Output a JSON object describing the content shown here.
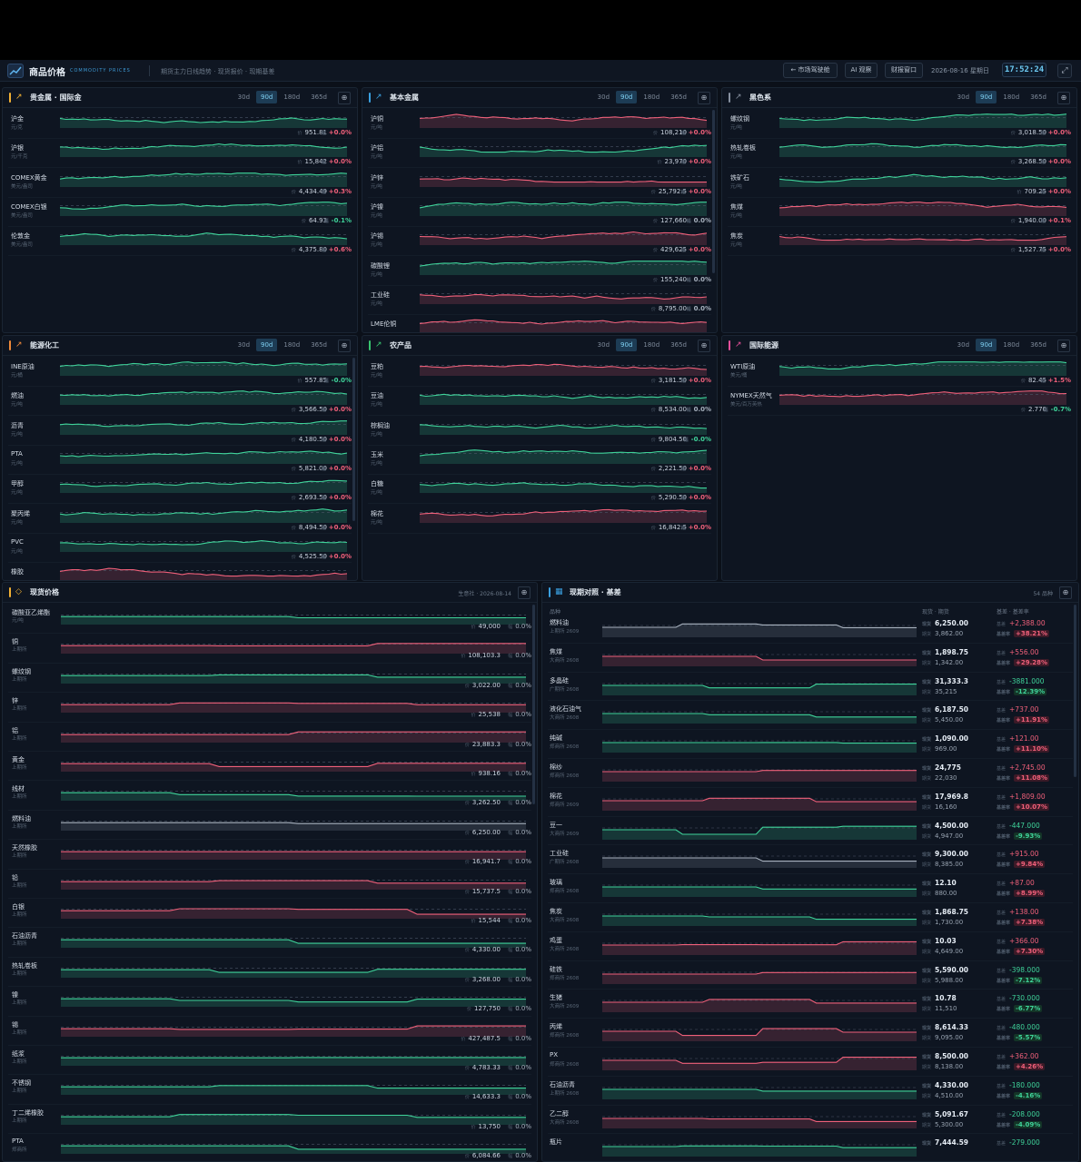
{
  "topbar": {
    "title": "商品价格",
    "subtitle": "COMMODITY PRICES",
    "description": "期货主力日线趋势 · 现货报价 · 现期基差",
    "btn_market": "← 市场驾驶舱",
    "btn_ai": "AI 观察",
    "btn_news": "财报窗口",
    "date": "2026-08-16 星期日",
    "clock": "17:52:24"
  },
  "labels": {
    "price": "价",
    "chg": "幅",
    "spot": "现货",
    "futures": "期货",
    "basis": "基差",
    "basis_rate": "基差率"
  },
  "ranges": [
    "30d",
    "90d",
    "180d",
    "365d"
  ],
  "active_range": "90d",
  "colors": {
    "up": "#f0607a",
    "down": "#3fd39a",
    "gold": "#f2b134",
    "blue": "#3aa0e0",
    "gray": "#8791a0",
    "orange": "#f08a3a",
    "green": "#38c46f",
    "pink": "#e94f9b"
  },
  "panels": [
    {
      "title": "贵金属 · 国际金",
      "accent": "gold",
      "rows": [
        {
          "name": "沪金",
          "unit": "元/克",
          "price": "951.81",
          "change": "+0.0%",
          "dir": "up",
          "trend": "up"
        },
        {
          "name": "沪银",
          "unit": "元/千克",
          "price": "15,842",
          "change": "+0.0%",
          "dir": "up",
          "trend": "up"
        },
        {
          "name": "COMEX黄金",
          "unit": "美元/盎司",
          "price": "4,434.49",
          "change": "+0.3%",
          "dir": "up",
          "trend": "up"
        },
        {
          "name": "COMEX白银",
          "unit": "美元/盎司",
          "price": "64.93",
          "change": "-0.1%",
          "dir": "down",
          "trend": "up"
        },
        {
          "name": "伦敦金",
          "unit": "美元/盎司",
          "price": "4,375.80",
          "change": "+0.6%",
          "dir": "up",
          "trend": "up"
        }
      ]
    },
    {
      "title": "基本金属",
      "accent": "blue",
      "rows": [
        {
          "name": "沪铜",
          "unit": "元/吨",
          "price": "108,210",
          "change": "+0.0%",
          "dir": "up",
          "trend": "down"
        },
        {
          "name": "沪铝",
          "unit": "元/吨",
          "price": "23,970",
          "change": "+0.0%",
          "dir": "up",
          "trend": "up"
        },
        {
          "name": "沪锌",
          "unit": "元/吨",
          "price": "25,792.5",
          "change": "+0.0%",
          "dir": "up",
          "trend": "down"
        },
        {
          "name": "沪镍",
          "unit": "元/吨",
          "price": "127,660",
          "change": "0.0%",
          "dir": "flat",
          "trend": "up"
        },
        {
          "name": "沪锡",
          "unit": "元/吨",
          "price": "429,625",
          "change": "+0.0%",
          "dir": "up",
          "trend": "down"
        },
        {
          "name": "碳酸锂",
          "unit": "元/吨",
          "price": "155,240",
          "change": "0.0%",
          "dir": "flat",
          "trend": "up"
        },
        {
          "name": "工业硅",
          "unit": "元/吨",
          "price": "8,795.00",
          "change": "0.0%",
          "dir": "flat",
          "trend": "down"
        },
        {
          "name": "LME伦铜",
          "unit": "",
          "price": "",
          "change": "",
          "dir": "flat",
          "trend": "down"
        }
      ]
    },
    {
      "title": "黑色系",
      "accent": "gray",
      "rows": [
        {
          "name": "螺纹钢",
          "unit": "元/吨",
          "price": "3,018.50",
          "change": "+0.0%",
          "dir": "up",
          "trend": "up"
        },
        {
          "name": "热轧卷板",
          "unit": "元/吨",
          "price": "3,268.50",
          "change": "+0.0%",
          "dir": "up",
          "trend": "up"
        },
        {
          "name": "铁矿石",
          "unit": "元/吨",
          "price": "709.25",
          "change": "+0.0%",
          "dir": "up",
          "trend": "up"
        },
        {
          "name": "焦煤",
          "unit": "元/吨",
          "price": "1,940.00",
          "change": "+0.1%",
          "dir": "up",
          "trend": "down"
        },
        {
          "name": "焦炭",
          "unit": "元/吨",
          "price": "1,527.75",
          "change": "+0.0%",
          "dir": "up",
          "trend": "down"
        }
      ]
    },
    {
      "title": "能源化工",
      "accent": "orange",
      "rows": [
        {
          "name": "INE原油",
          "unit": "元/桶",
          "price": "557.85",
          "change": "-0.0%",
          "dir": "down",
          "trend": "up"
        },
        {
          "name": "燃油",
          "unit": "元/吨",
          "price": "3,566.50",
          "change": "+0.0%",
          "dir": "up",
          "trend": "up"
        },
        {
          "name": "沥青",
          "unit": "元/吨",
          "price": "4,180.50",
          "change": "+0.0%",
          "dir": "up",
          "trend": "up"
        },
        {
          "name": "PTA",
          "unit": "元/吨",
          "price": "5,821.00",
          "change": "+0.0%",
          "dir": "up",
          "trend": "up"
        },
        {
          "name": "甲醇",
          "unit": "元/吨",
          "price": "2,693.50",
          "change": "+0.0%",
          "dir": "up",
          "trend": "up"
        },
        {
          "name": "聚丙烯",
          "unit": "元/吨",
          "price": "8,494.50",
          "change": "+0.0%",
          "dir": "up",
          "trend": "up"
        },
        {
          "name": "PVC",
          "unit": "元/吨",
          "price": "4,525.50",
          "change": "+0.0%",
          "dir": "up",
          "trend": "up"
        },
        {
          "name": "橡胶",
          "unit": "",
          "price": "",
          "change": "",
          "dir": "flat",
          "trend": "down"
        }
      ]
    },
    {
      "title": "农产品",
      "accent": "green",
      "rows": [
        {
          "name": "豆粕",
          "unit": "元/吨",
          "price": "3,181.50",
          "change": "+0.0%",
          "dir": "up",
          "trend": "down"
        },
        {
          "name": "豆油",
          "unit": "元/吨",
          "price": "8,534.00",
          "change": "0.0%",
          "dir": "flat",
          "trend": "up"
        },
        {
          "name": "棕榈油",
          "unit": "元/吨",
          "price": "9,804.50",
          "change": "-0.0%",
          "dir": "down",
          "trend": "up"
        },
        {
          "name": "玉米",
          "unit": "元/吨",
          "price": "2,221.50",
          "change": "+0.0%",
          "dir": "up",
          "trend": "up"
        },
        {
          "name": "白糖",
          "unit": "元/吨",
          "price": "5,290.50",
          "change": "+0.0%",
          "dir": "up",
          "trend": "up"
        },
        {
          "name": "棉花",
          "unit": "元/吨",
          "price": "16,842.5",
          "change": "+0.0%",
          "dir": "up",
          "trend": "down"
        }
      ]
    },
    {
      "title": "国际能源",
      "accent": "pink",
      "rows": [
        {
          "name": "WTI原油",
          "unit": "美元/桶",
          "price": "82.45",
          "change": "+1.5%",
          "dir": "up",
          "trend": "up"
        },
        {
          "name": "NYMEX天然气",
          "unit": "美元/百万英热",
          "price": "2.770",
          "change": "-0.7%",
          "dir": "down",
          "trend": "down"
        }
      ]
    }
  ],
  "spot": {
    "title": "现货价格",
    "source": "生意社 · 2026-08-14",
    "rows": [
      {
        "name": "碳酸亚乙烯酯",
        "ex": "元/吨",
        "price": "49,000",
        "change": "0.0%",
        "trend": "up"
      },
      {
        "name": "铜",
        "ex": "上期所",
        "price": "108,103.3",
        "change": "0.0%",
        "trend": "down"
      },
      {
        "name": "螺纹钢",
        "ex": "上期所",
        "price": "3,022.00",
        "change": "0.0%",
        "trend": "up"
      },
      {
        "name": "锌",
        "ex": "上期所",
        "price": "25,538",
        "change": "0.0%",
        "trend": "down"
      },
      {
        "name": "铝",
        "ex": "上期所",
        "price": "23,883.3",
        "change": "0.0%",
        "trend": "down"
      },
      {
        "name": "黄金",
        "ex": "上期所",
        "price": "938.16",
        "change": "0.0%",
        "trend": "down"
      },
      {
        "name": "线材",
        "ex": "上期所",
        "price": "3,262.50",
        "change": "0.0%",
        "trend": "up"
      },
      {
        "name": "燃料油",
        "ex": "上期所",
        "price": "6,250.00",
        "change": "0.0%",
        "trend": "flat"
      },
      {
        "name": "天然橡胶",
        "ex": "上期所",
        "price": "16,941.7",
        "change": "0.0%",
        "trend": "down"
      },
      {
        "name": "铅",
        "ex": "上期所",
        "price": "15,737.5",
        "change": "0.0%",
        "trend": "down"
      },
      {
        "name": "白银",
        "ex": "上期所",
        "price": "15,544",
        "change": "0.0%",
        "trend": "down"
      },
      {
        "name": "石油沥青",
        "ex": "上期所",
        "price": "4,330.00",
        "change": "0.0%",
        "trend": "up"
      },
      {
        "name": "热轧卷板",
        "ex": "上期所",
        "price": "3,268.00",
        "change": "0.0%",
        "trend": "up"
      },
      {
        "name": "镍",
        "ex": "上期所",
        "price": "127,750",
        "change": "0.0%",
        "trend": "up"
      },
      {
        "name": "锡",
        "ex": "上期所",
        "price": "427,487.5",
        "change": "0.0%",
        "trend": "down"
      },
      {
        "name": "纸浆",
        "ex": "上期所",
        "price": "4,783.33",
        "change": "0.0%",
        "trend": "up"
      },
      {
        "name": "不锈钢",
        "ex": "上期所",
        "price": "14,633.3",
        "change": "0.0%",
        "trend": "up"
      },
      {
        "name": "丁二烯橡胶",
        "ex": "上期所",
        "price": "13,750",
        "change": "0.0%",
        "trend": "up"
      },
      {
        "name": "PTA",
        "ex": "郑商所",
        "price": "6,084.66",
        "change": "0.0%",
        "trend": "up"
      }
    ]
  },
  "basis": {
    "title": "现期对照 · 基差",
    "count": "54 品种",
    "headers": {
      "name": "品种",
      "prices": "现货 · 期货",
      "basis": "基差 · 基差率"
    },
    "rows": [
      {
        "name": "燃料油",
        "ex": "上期所 2609",
        "spot": "6,250.00",
        "fut": "3,862.00",
        "basis": "+2,388.00",
        "rate": "+38.21%",
        "dir": "up",
        "trend": "flat"
      },
      {
        "name": "焦煤",
        "ex": "大商所 2608",
        "spot": "1,898.75",
        "fut": "1,342.00",
        "basis": "+556.00",
        "rate": "+29.28%",
        "dir": "up",
        "trend": "down"
      },
      {
        "name": "多晶硅",
        "ex": "广期所 2608",
        "spot": "31,333.3",
        "fut": "35,215",
        "basis": "-3881.000",
        "rate": "-12.39%",
        "dir": "down",
        "trend": "up"
      },
      {
        "name": "液化石油气",
        "ex": "大商所 2608",
        "spot": "6,187.50",
        "fut": "5,450.00",
        "basis": "+737.00",
        "rate": "+11.91%",
        "dir": "up",
        "trend": "up"
      },
      {
        "name": "纯碱",
        "ex": "郑商所 2608",
        "spot": "1,090.00",
        "fut": "969.00",
        "basis": "+121.00",
        "rate": "+11.10%",
        "dir": "up",
        "trend": "up"
      },
      {
        "name": "棉纱",
        "ex": "郑商所 2608",
        "spot": "24,775",
        "fut": "22,030",
        "basis": "+2,745.00",
        "rate": "+11.08%",
        "dir": "up",
        "trend": "down"
      },
      {
        "name": "棉花",
        "ex": "郑商所 2609",
        "spot": "17,969.8",
        "fut": "16,160",
        "basis": "+1,809.00",
        "rate": "+10.07%",
        "dir": "up",
        "trend": "down"
      },
      {
        "name": "豆一",
        "ex": "大商所 2609",
        "spot": "4,500.00",
        "fut": "4,947.00",
        "basis": "-447.000",
        "rate": "-9.93%",
        "dir": "down",
        "trend": "up"
      },
      {
        "name": "工业硅",
        "ex": "广期所 2608",
        "spot": "9,300.00",
        "fut": "8,385.00",
        "basis": "+915.00",
        "rate": "+9.84%",
        "dir": "up",
        "trend": "flat"
      },
      {
        "name": "玻璃",
        "ex": "郑商所 2608",
        "spot": "12.10",
        "fut": "880.00",
        "basis": "+87.00",
        "rate": "+8.99%",
        "dir": "up",
        "trend": "up"
      },
      {
        "name": "焦炭",
        "ex": "大商所 2608",
        "spot": "1,868.75",
        "fut": "1,730.00",
        "basis": "+138.00",
        "rate": "+7.38%",
        "dir": "up",
        "trend": "up"
      },
      {
        "name": "鸡蛋",
        "ex": "大商所 2608",
        "spot": "10.03",
        "fut": "4,649.00",
        "basis": "+366.00",
        "rate": "+7.30%",
        "dir": "up",
        "trend": "down"
      },
      {
        "name": "硅铁",
        "ex": "郑商所 2608",
        "spot": "5,590.00",
        "fut": "5,988.00",
        "basis": "-398.000",
        "rate": "-7.12%",
        "dir": "down",
        "trend": "down"
      },
      {
        "name": "生猪",
        "ex": "大商所 2609",
        "spot": "10.78",
        "fut": "11,510",
        "basis": "-730.000",
        "rate": "-6.77%",
        "dir": "down",
        "trend": "down"
      },
      {
        "name": "丙烯",
        "ex": "郑商所 2608",
        "spot": "8,614.33",
        "fut": "9,095.00",
        "basis": "-480.000",
        "rate": "-5.57%",
        "dir": "down",
        "trend": "down"
      },
      {
        "name": "PX",
        "ex": "郑商所 2608",
        "spot": "8,500.00",
        "fut": "8,138.00",
        "basis": "+362.00",
        "rate": "+4.26%",
        "dir": "up",
        "trend": "down"
      },
      {
        "name": "石油沥青",
        "ex": "上期所 2608",
        "spot": "4,330.00",
        "fut": "4,510.00",
        "basis": "-180.000",
        "rate": "-4.16%",
        "dir": "down",
        "trend": "up"
      },
      {
        "name": "乙二醇",
        "ex": "大商所 2608",
        "spot": "5,091.67",
        "fut": "5,300.00",
        "basis": "-208.000",
        "rate": "-4.09%",
        "dir": "down",
        "trend": "down"
      },
      {
        "name": "瓶片",
        "ex": "",
        "spot": "7,444.59",
        "fut": "",
        "basis": "-279.000",
        "rate": "",
        "dir": "down",
        "trend": "up"
      }
    ]
  }
}
